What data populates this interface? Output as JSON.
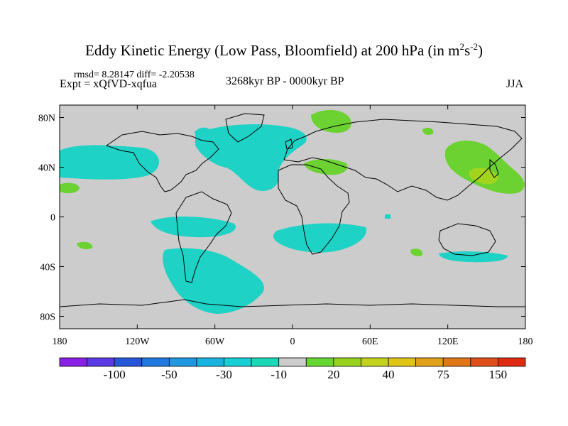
{
  "title": "Eddy Kinetic Energy (Low Pass, Bloomfield) at 200 hPa (in m",
  "title_unit_m_exp": "2",
  "title_unit_s": "s",
  "title_unit_s_exp": "-2",
  "title_close": ")",
  "stats_text": "rmsd= 8.28147 diff= -2.20538",
  "experiment_text": "Expt = xQfVD-xqfua",
  "period_text": "3268kyr BP - 0000kyr BP",
  "season_text": "JJA",
  "axes": {
    "lat_ticks": [
      80,
      40,
      0,
      -40,
      -80
    ],
    "lat_labels": [
      "80N",
      "40N",
      "0",
      "40S",
      "80S"
    ],
    "lon_ticks": [
      -180,
      -120,
      -60,
      0,
      60,
      120,
      180
    ],
    "lon_labels": [
      "180",
      "120W",
      "60W",
      "0",
      "60E",
      "120E",
      "180"
    ]
  },
  "colorbar": {
    "labels": [
      "-100",
      "-50",
      "-30",
      "-10",
      "20",
      "40",
      "75",
      "150"
    ],
    "colors": [
      "#8a1fe6",
      "#5a3ae6",
      "#2457d9",
      "#1e78e0",
      "#1e98e0",
      "#17b4e0",
      "#18cfd6",
      "#18d8b8",
      "#cccccc",
      "#66d632",
      "#99d21e",
      "#c5d21e",
      "#e0c418",
      "#e0a018",
      "#e07818",
      "#e04f18",
      "#e02a10"
    ]
  },
  "colors": {
    "ocean_land_background": "#cccccc",
    "negative_fill": "#1ed2c5",
    "positive_fill": "#6cd232",
    "positive_strong_fill": "#a2d41e"
  }
}
